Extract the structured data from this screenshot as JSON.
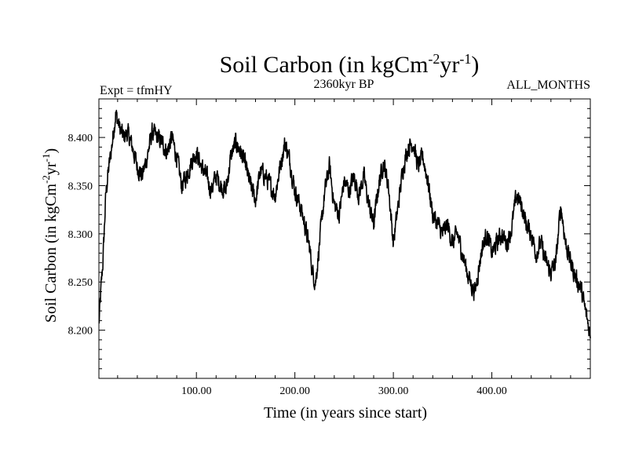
{
  "chart_data": {
    "type": "line",
    "title_main": "Soil Carbon (in kgCm",
    "title_exp1": "-2",
    "title_mid": "yr",
    "title_exp2": "-1",
    "title_end": ")",
    "subtitle_left": "Expt = tfmHY",
    "subtitle_center": "2360kyr BP",
    "subtitle_right": "ALL_MONTHS",
    "xlabel": "Time (in years since start)",
    "ylabel_main": "Soil Carbon (in kgCm",
    "ylabel_exp1": "-2",
    "ylabel_mid": "yr",
    "ylabel_exp2": "-1",
    "ylabel_end": ")",
    "xlim": [
      1,
      500
    ],
    "ylim": [
      8.15,
      8.44
    ],
    "xticks": [
      100,
      200,
      300,
      400
    ],
    "xtick_labels": [
      "100.00",
      "200.00",
      "300.00",
      "400.00"
    ],
    "yticks": [
      8.2,
      8.25,
      8.3,
      8.35,
      8.4
    ],
    "ytick_labels": [
      "8.200",
      "8.250",
      "8.300",
      "8.350",
      "8.400"
    ],
    "series": [
      {
        "name": "Soil Carbon",
        "color": "#000000",
        "anchors": {
          "x": [
            1,
            3,
            5,
            8,
            10,
            14,
            18,
            22,
            26,
            30,
            35,
            40,
            45,
            50,
            55,
            60,
            65,
            70,
            75,
            80,
            85,
            90,
            95,
            100,
            105,
            110,
            115,
            120,
            125,
            130,
            135,
            140,
            145,
            150,
            155,
            160,
            165,
            170,
            175,
            180,
            185,
            190,
            195,
            200,
            205,
            210,
            215,
            218,
            221,
            225,
            230,
            235,
            240,
            245,
            250,
            255,
            260,
            265,
            270,
            275,
            280,
            285,
            290,
            295,
            300,
            305,
            310,
            315,
            320,
            325,
            330,
            335,
            340,
            345,
            350,
            355,
            360,
            365,
            370,
            375,
            380,
            383,
            386,
            390,
            395,
            400,
            405,
            410,
            415,
            420,
            425,
            430,
            435,
            440,
            445,
            450,
            455,
            460,
            465,
            470,
            475,
            480,
            485,
            490,
            495,
            500
          ],
          "y": [
            8.205,
            8.24,
            8.27,
            8.34,
            8.36,
            8.39,
            8.425,
            8.41,
            8.4,
            8.405,
            8.39,
            8.37,
            8.36,
            8.38,
            8.405,
            8.4,
            8.395,
            8.385,
            8.4,
            8.38,
            8.35,
            8.36,
            8.375,
            8.385,
            8.37,
            8.36,
            8.345,
            8.36,
            8.35,
            8.345,
            8.38,
            8.395,
            8.385,
            8.37,
            8.35,
            8.335,
            8.365,
            8.36,
            8.35,
            8.34,
            8.37,
            8.395,
            8.375,
            8.345,
            8.33,
            8.31,
            8.285,
            8.26,
            8.25,
            8.29,
            8.34,
            8.37,
            8.33,
            8.32,
            8.355,
            8.345,
            8.36,
            8.34,
            8.36,
            8.33,
            8.31,
            8.35,
            8.375,
            8.35,
            8.29,
            8.33,
            8.37,
            8.39,
            8.395,
            8.37,
            8.38,
            8.355,
            8.32,
            8.31,
            8.3,
            8.31,
            8.29,
            8.3,
            8.28,
            8.26,
            8.245,
            8.24,
            8.26,
            8.285,
            8.3,
            8.28,
            8.29,
            8.3,
            8.29,
            8.305,
            8.34,
            8.33,
            8.31,
            8.3,
            8.28,
            8.29,
            8.27,
            8.26,
            8.27,
            8.33,
            8.29,
            8.27,
            8.255,
            8.245,
            8.22,
            8.195
          ]
        }
      }
    ]
  }
}
